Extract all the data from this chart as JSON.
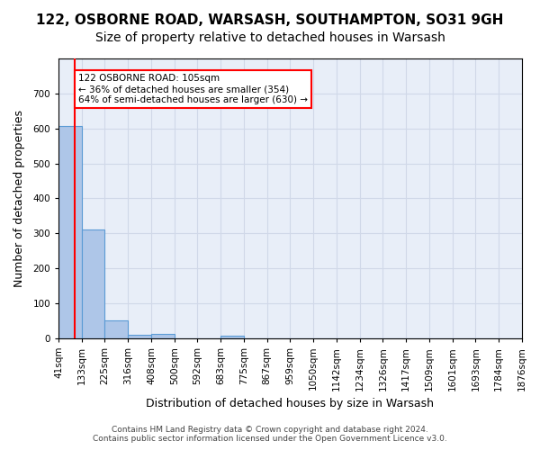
{
  "title_line1": "122, OSBORNE ROAD, WARSASH, SOUTHAMPTON, SO31 9GH",
  "title_line2": "Size of property relative to detached houses in Warsash",
  "xlabel": "Distribution of detached houses by size in Warsash",
  "ylabel": "Number of detached properties",
  "footer_line1": "Contains HM Land Registry data © Crown copyright and database right 2024.",
  "footer_line2": "Contains public sector information licensed under the Open Government Licence v3.0.",
  "bin_labels": [
    "41sqm",
    "133sqm",
    "225sqm",
    "316sqm",
    "408sqm",
    "500sqm",
    "592sqm",
    "683sqm",
    "775sqm",
    "867sqm",
    "959sqm",
    "1050sqm",
    "1142sqm",
    "1234sqm",
    "1326sqm",
    "1417sqm",
    "1509sqm",
    "1601sqm",
    "1693sqm",
    "1784sqm",
    "1876sqm"
  ],
  "bar_values": [
    607,
    310,
    50,
    11,
    13,
    0,
    0,
    8,
    0,
    0,
    0,
    0,
    0,
    0,
    0,
    0,
    0,
    0,
    0,
    0
  ],
  "bar_color": "#aec6e8",
  "bar_edge_color": "#5b9bd5",
  "bar_edge_width": 0.8,
  "property_line_x": 1,
  "property_size": 105,
  "annotation_text": "122 OSBORNE ROAD: 105sqm\n← 36% of detached houses are smaller (354)\n64% of semi-detached houses are larger (630) →",
  "annotation_box_color": "white",
  "annotation_box_edge_color": "red",
  "vline_color": "red",
  "ylim": [
    0,
    800
  ],
  "yticks": [
    0,
    100,
    200,
    300,
    400,
    500,
    600,
    700,
    800
  ],
  "grid_color": "#d0d8e8",
  "bg_color": "#e8eef8",
  "title1_fontsize": 11,
  "title2_fontsize": 10,
  "xlabel_fontsize": 9,
  "ylabel_fontsize": 9,
  "tick_fontsize": 7.5,
  "footer_fontsize": 6.5
}
